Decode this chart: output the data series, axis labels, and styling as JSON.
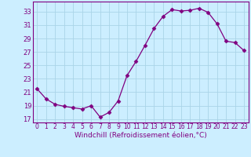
{
  "hours": [
    0,
    1,
    2,
    3,
    4,
    5,
    6,
    7,
    8,
    9,
    10,
    11,
    12,
    13,
    14,
    15,
    16,
    17,
    18,
    19,
    20,
    21,
    22,
    23
  ],
  "windchill": [
    21.5,
    20.0,
    19.2,
    18.9,
    18.7,
    18.5,
    19.0,
    17.3,
    18.0,
    19.7,
    23.5,
    25.6,
    28.0,
    30.5,
    32.3,
    33.3,
    33.1,
    33.2,
    33.5,
    32.9,
    31.2,
    28.6,
    28.4,
    27.2
  ],
  "line_color": "#800080",
  "marker": "D",
  "markersize": 2.5,
  "bg_color": "#cceeff",
  "grid_color": "#aad4e8",
  "xlabel": "Windchill (Refroidissement éolien,°C)",
  "xlabel_color": "#800080",
  "ylabel_ticks": [
    17,
    19,
    21,
    23,
    25,
    27,
    29,
    31,
    33
  ],
  "xlim": [
    -0.5,
    23.5
  ],
  "ylim": [
    16.5,
    34.5
  ],
  "tick_color": "#800080",
  "axis_color": "#800080",
  "tick_fontsize": 5.5,
  "xlabel_fontsize": 6.5
}
